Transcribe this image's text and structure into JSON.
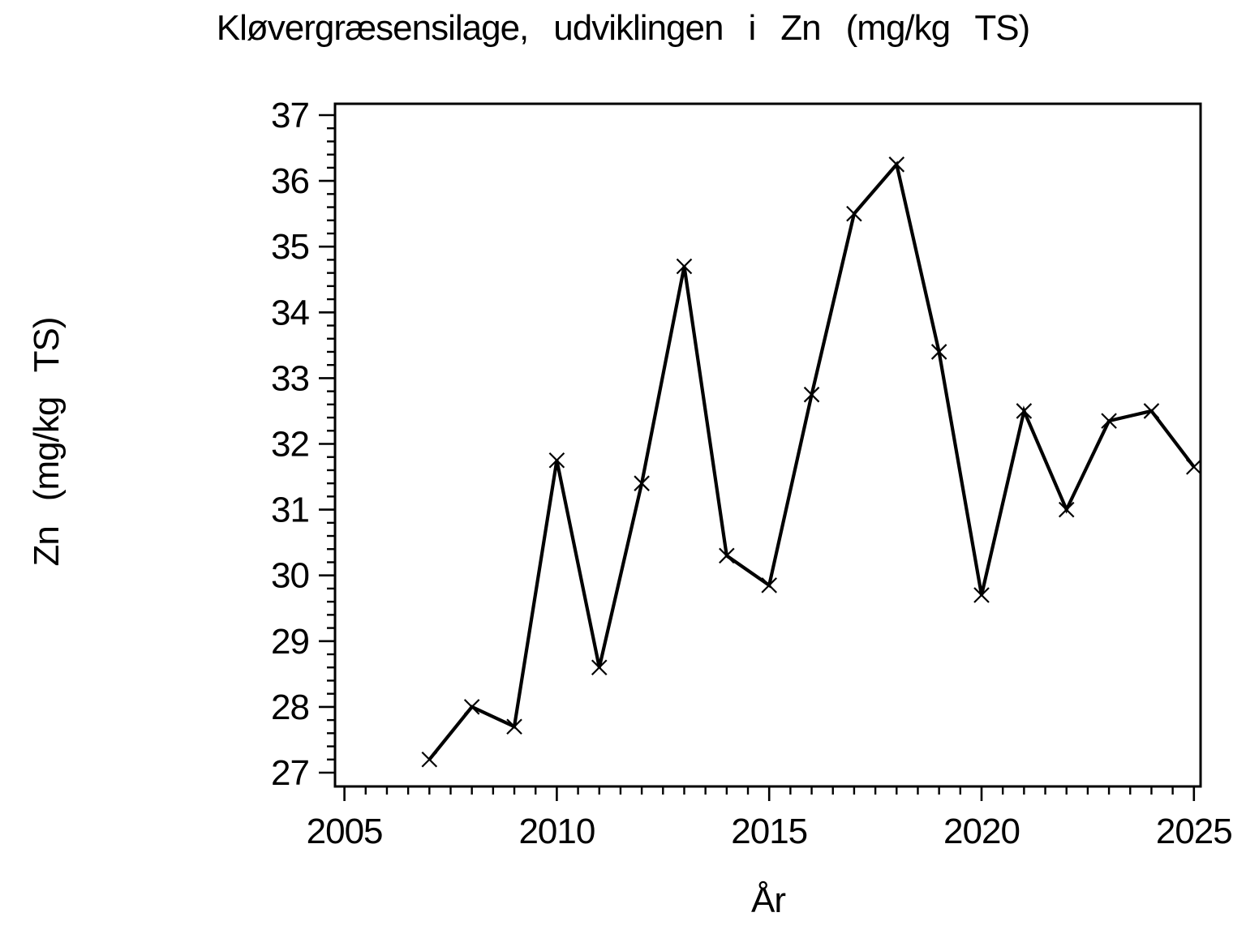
{
  "chart_data": {
    "type": "line",
    "title": "Kløvergræsensilage, udviklingen i Zn (mg/kg TS)",
    "xlabel": "År",
    "ylabel": "Zn (mg/kg TS)",
    "x": [
      2007,
      2008,
      2009,
      2010,
      2011,
      2012,
      2013,
      2014,
      2015,
      2016,
      2017,
      2018,
      2019,
      2020,
      2021,
      2022,
      2023,
      2024,
      2025
    ],
    "values": [
      27.2,
      28.0,
      27.7,
      31.75,
      28.6,
      31.4,
      34.7,
      30.3,
      29.85,
      32.75,
      35.5,
      36.25,
      33.4,
      29.7,
      32.5,
      31.0,
      32.35,
      32.5,
      31.65
    ],
    "series_name": "Zn",
    "xlim": [
      2005,
      2025
    ],
    "ylim": [
      27,
      37
    ],
    "x_major_ticks": [
      2005,
      2010,
      2015,
      2020,
      2025
    ],
    "x_minor_step": 0.5,
    "y_major_step": 1,
    "y_minor_step": 0.2,
    "marker": "x",
    "line_color": "#000000",
    "background_color": "#ffffff",
    "grid": false,
    "legend": "none"
  }
}
